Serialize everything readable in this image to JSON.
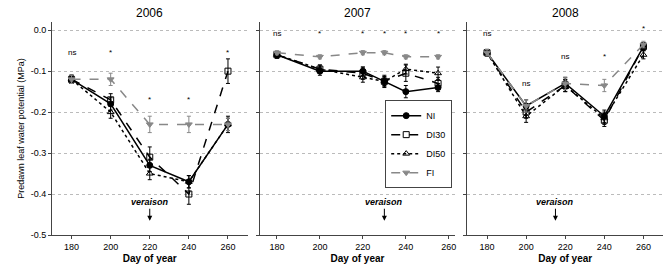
{
  "chart_data": [
    {
      "type": "line",
      "title": "2006",
      "xlabel": "Day of year",
      "ylabel": "Predawn leaf water potential (MPa)",
      "x": [
        180,
        200,
        220,
        240,
        260
      ],
      "xlim": [
        170,
        270
      ],
      "xticks": [
        180,
        200,
        220,
        240,
        260
      ],
      "ylim": [
        -0.5,
        0.02
      ],
      "yticks": [
        {
          "value": 0.0,
          "label": "0.0"
        },
        -0.1,
        -0.2,
        -0.3,
        -0.4,
        -0.5
      ],
      "grid": "y",
      "series": [
        {
          "name": "NI",
          "color": "#000000",
          "marker": "circle",
          "line_style": "solid",
          "values": [
            -0.12,
            -0.18,
            -0.33,
            -0.37,
            -0.23
          ],
          "errors": [
            0.01,
            0.015,
            0.015,
            0.015,
            0.02
          ]
        },
        {
          "name": "DI30",
          "color": "#000000",
          "marker": "square-open",
          "line_style": "dash",
          "values": [
            -0.12,
            -0.17,
            -0.31,
            -0.4,
            -0.1
          ],
          "errors": [
            0.01,
            0.015,
            0.025,
            0.025,
            0.03
          ]
        },
        {
          "name": "DI50",
          "color": "#000000",
          "marker": "triangle-up-open",
          "line_style": "dot",
          "values": [
            -0.12,
            -0.2,
            -0.35,
            -0.37,
            -0.23
          ],
          "errors": [
            0.01,
            0.015,
            0.015,
            0.015,
            0.015
          ]
        },
        {
          "name": "FI",
          "color": "#888888",
          "marker": "triangle-down",
          "line_style": "dash",
          "values": [
            -0.12,
            -0.12,
            -0.23,
            -0.23,
            -0.23
          ],
          "errors": [
            0.01,
            0.015,
            0.02,
            0.02,
            0.015
          ]
        }
      ],
      "annotations": [
        {
          "text": "ns",
          "x": 180,
          "y": -0.07
        },
        {
          "text": "*",
          "x": 200,
          "y": -0.07
        },
        {
          "text": "*",
          "x": 220,
          "y": -0.185
        },
        {
          "text": "*",
          "x": 240,
          "y": -0.185
        },
        {
          "text": "*",
          "x": 260,
          "y": -0.07
        },
        {
          "text": "veraison",
          "x": 220,
          "y": -0.42,
          "arrow_y": -0.465
        }
      ]
    },
    {
      "type": "line",
      "title": "2007",
      "xlabel": "Day of year",
      "x": [
        180,
        200,
        220,
        230,
        240,
        255
      ],
      "xlim": [
        172,
        263
      ],
      "xticks": [
        180,
        200,
        220,
        240,
        260
      ],
      "ylim": [
        -0.5,
        0.02
      ],
      "yticks": [
        {
          "value": 0.0,
          "label": "0.0"
        },
        -0.1,
        -0.2,
        -0.3,
        -0.4,
        -0.5
      ],
      "grid": "y",
      "tick_labels": "x",
      "legend": "lower right",
      "series": [
        {
          "name": "NI",
          "color": "#000000",
          "marker": "circle",
          "line_style": "solid",
          "values": [
            -0.06,
            -0.1,
            -0.1,
            -0.125,
            -0.15,
            -0.14
          ],
          "errors": [
            0.008,
            0.01,
            0.01,
            0.01,
            0.015,
            0.01
          ]
        },
        {
          "name": "DI30",
          "color": "#000000",
          "marker": "square-open",
          "line_style": "dash",
          "values": [
            -0.06,
            -0.095,
            -0.105,
            -0.125,
            -0.105,
            -0.13
          ],
          "errors": [
            0.008,
            0.01,
            0.015,
            0.015,
            0.02,
            0.015
          ]
        },
        {
          "name": "DI50",
          "color": "#000000",
          "marker": "triangle-up-open",
          "line_style": "dot",
          "values": [
            -0.06,
            -0.095,
            -0.115,
            -0.125,
            -0.095,
            -0.105
          ],
          "errors": [
            0.008,
            0.01,
            0.012,
            0.012,
            0.012,
            0.015
          ]
        },
        {
          "name": "FI",
          "color": "#888888",
          "marker": "triangle-down",
          "line_style": "dash",
          "values": [
            -0.055,
            -0.065,
            -0.055,
            -0.055,
            -0.065,
            -0.065
          ],
          "errors": [
            0.005,
            0.005,
            0.005,
            0.005,
            0.005,
            0.005
          ]
        }
      ],
      "annotations": [
        {
          "text": "ns",
          "x": 180,
          "y": -0.025
        },
        {
          "text": "*",
          "x": 200,
          "y": -0.025
        },
        {
          "text": "*",
          "x": 220,
          "y": -0.025
        },
        {
          "text": "*",
          "x": 230,
          "y": -0.025
        },
        {
          "text": "*",
          "x": 240,
          "y": -0.025
        },
        {
          "text": "*",
          "x": 255,
          "y": -0.025
        },
        {
          "text": "veraison",
          "x": 230,
          "y": -0.42,
          "arrow_y": -0.465
        }
      ]
    },
    {
      "type": "line",
      "title": "2008",
      "xlabel": "Day of year",
      "x": [
        180,
        200,
        220,
        240,
        260
      ],
      "xlim": [
        170,
        270
      ],
      "xticks": [
        180,
        200,
        220,
        240,
        260
      ],
      "ylim": [
        -0.5,
        0.02
      ],
      "yticks": [
        {
          "value": 0.0,
          "label": "0.0"
        },
        -0.1,
        -0.2,
        -0.3,
        -0.4,
        -0.5
      ],
      "grid": "y",
      "tick_labels": "x",
      "series": [
        {
          "name": "NI",
          "color": "#000000",
          "marker": "circle",
          "line_style": "solid",
          "values": [
            -0.055,
            -0.185,
            -0.13,
            -0.21,
            -0.04
          ],
          "errors": [
            0.008,
            0.015,
            0.015,
            0.015,
            0.01
          ]
        },
        {
          "name": "DI30",
          "color": "#000000",
          "marker": "square-open",
          "line_style": "dash",
          "values": [
            -0.055,
            -0.2,
            -0.135,
            -0.22,
            -0.04
          ],
          "errors": [
            0.008,
            0.015,
            0.015,
            0.015,
            0.01
          ]
        },
        {
          "name": "DI50",
          "color": "#000000",
          "marker": "triangle-up-open",
          "line_style": "dot",
          "values": [
            -0.055,
            -0.21,
            -0.135,
            -0.215,
            -0.06
          ],
          "errors": [
            0.008,
            0.015,
            0.015,
            0.015,
            0.01
          ]
        },
        {
          "name": "FI",
          "color": "#888888",
          "marker": "triangle-down",
          "line_style": "dash",
          "values": [
            -0.055,
            -0.185,
            -0.13,
            -0.135,
            -0.035
          ],
          "errors": [
            0.008,
            0.015,
            0.015,
            0.015,
            0.008
          ]
        }
      ],
      "annotations": [
        {
          "text": "ns",
          "x": 180,
          "y": -0.025
        },
        {
          "text": "ns",
          "x": 200,
          "y": -0.145
        },
        {
          "text": "ns",
          "x": 220,
          "y": -0.08
        },
        {
          "text": "*",
          "x": 240,
          "y": -0.08
        },
        {
          "text": "*",
          "x": 260,
          "y": -0.012
        },
        {
          "text": "veraison",
          "x": 215,
          "y": -0.42,
          "arrow_y": -0.465
        }
      ]
    }
  ]
}
